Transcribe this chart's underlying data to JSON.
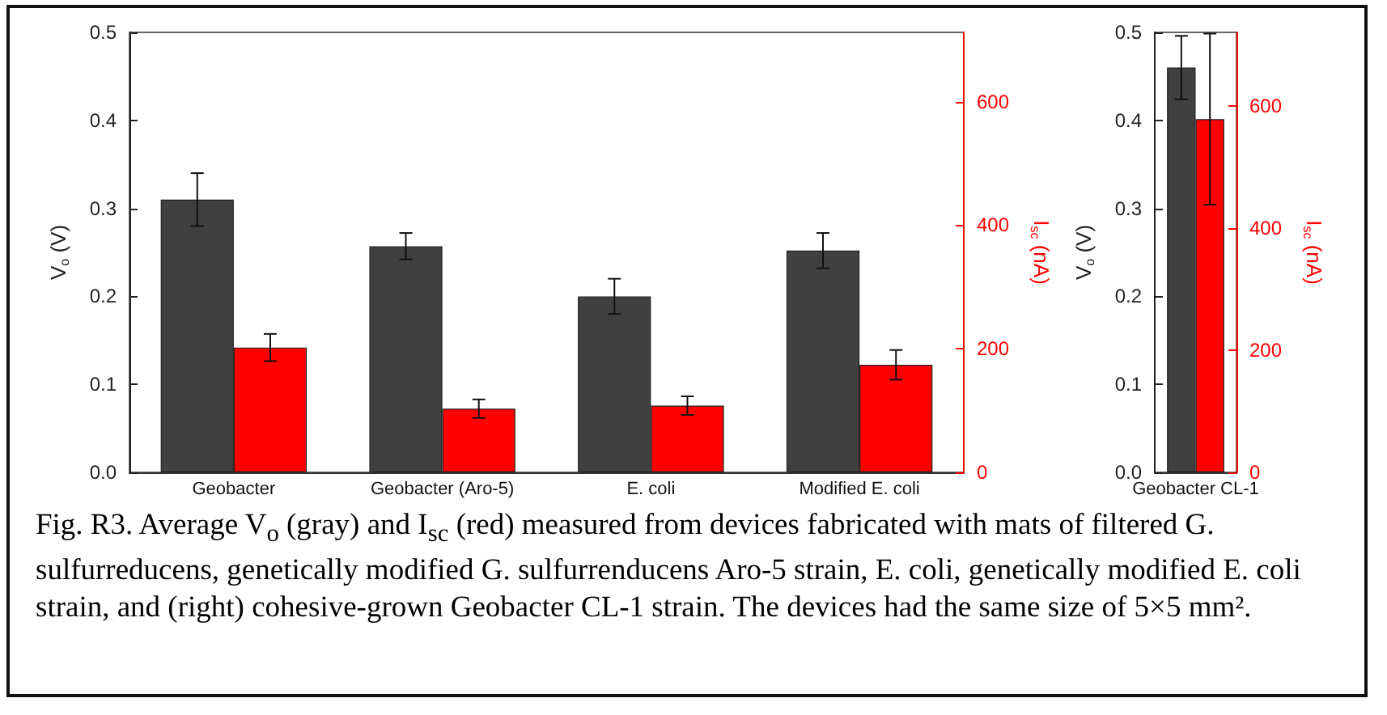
{
  "chart_data": [
    {
      "type": "bar",
      "categories": [
        "Geobacter",
        "Geobacter (Aro-5)",
        "E. coli",
        "Modified E. coli"
      ],
      "series": [
        {
          "color": "#404040",
          "values": [
            0.31,
            0.257,
            0.2,
            0.252
          ],
          "errors": [
            0.03,
            0.015,
            0.02,
            0.02
          ]
        },
        {
          "color": "#ff0000",
          "axis": "y2",
          "values": [
            202,
            103,
            108,
            174
          ],
          "errors": [
            22,
            15,
            15,
            24
          ]
        }
      ],
      "ylabel": "V$_{o}$ (V)",
      "y2label": "I$_{sc}$ (nA)",
      "ylim": [
        0,
        0.5
      ],
      "yticks": [
        {
          "value": 0,
          "label": "0.0"
        },
        0.1,
        0.2,
        0.3,
        0.4,
        0.5
      ],
      "y2lim": [
        0,
        712
      ],
      "y2ticks": [
        0,
        200,
        400,
        600
      ],
      "grid": false,
      "annotations": [
        "Fig. R3. Average V$_{o}$ (gray) and I$_{sc}$ (red) measured from devices fabricated with mats of filtered G. sulfurreducens, genetically modified G. sulfurrenducens Aro-5 strain, E. coli, genetically modified E. coli strain, and (right) cohesive-grown Geobacter CL-1 strain.  The devices had the same size of 5×5 mm²."
      ]
    },
    {
      "type": "bar",
      "categories": [
        "Geobacter CL-1"
      ],
      "series": [
        {
          "color": "#404040",
          "values": [
            0.46
          ],
          "errors": [
            0.036
          ]
        },
        {
          "color": "#ff0000",
          "axis": "y2",
          "values": [
            578
          ],
          "errors": [
            140
          ]
        }
      ],
      "ylabel": "V$_{o}$ (V)",
      "y2label": "I$_{sc}$ (nA)",
      "ylim": [
        0,
        0.5
      ],
      "yticks": [
        {
          "value": 0,
          "label": "0.0"
        },
        0.1,
        0.2,
        0.3,
        0.4,
        0.5
      ],
      "y2lim": [
        0,
        720
      ],
      "y2ticks": [
        0,
        200,
        400,
        600
      ],
      "grid": false
    }
  ]
}
